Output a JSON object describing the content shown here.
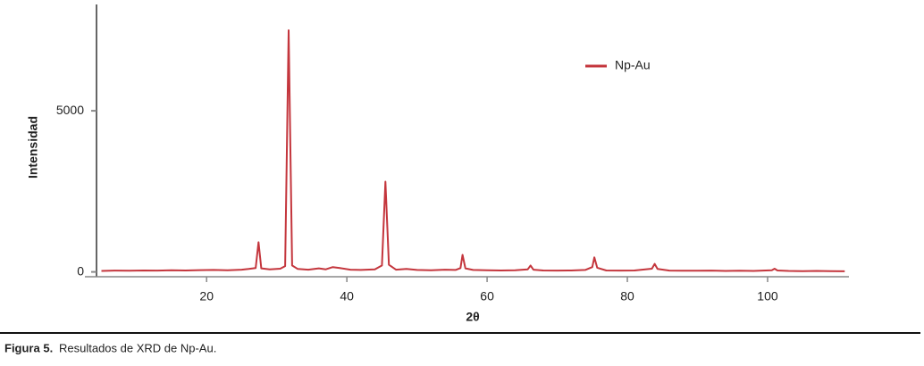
{
  "chart_data": {
    "type": "line",
    "xlabel": "2θ",
    "ylabel": "Intensidad",
    "xlim": [
      4.3,
      111.6
    ],
    "ylim": [
      -150,
      8300
    ],
    "xticks": [
      20,
      40,
      60,
      80,
      100
    ],
    "yticks": [
      0,
      5000
    ],
    "legend": "upper right",
    "x": [
      5,
      7,
      9,
      11,
      13,
      15,
      17,
      19,
      21,
      23,
      25,
      26,
      27,
      27.4,
      27.8,
      29,
      30.5,
      31.2,
      31.7,
      32.2,
      33,
      34.5,
      36,
      37,
      38,
      39,
      40.5,
      42,
      44,
      45,
      45.5,
      46,
      47,
      48.5,
      50,
      52,
      54,
      55.5,
      56.2,
      56.5,
      56.9,
      58,
      60,
      62,
      64,
      65.8,
      66.2,
      66.6,
      68,
      70,
      72,
      74,
      75,
      75.3,
      75.7,
      77,
      79,
      81,
      83.5,
      83.9,
      84.3,
      86,
      88,
      90,
      92,
      94,
      96,
      98,
      100.6,
      101,
      101.4,
      103,
      105,
      107,
      109,
      111
    ],
    "series": [
      {
        "name": "Np-Au",
        "color": "#c4363d",
        "values": [
          30,
          40,
          35,
          45,
          40,
          50,
          45,
          55,
          60,
          50,
          70,
          90,
          120,
          920,
          110,
          80,
          100,
          180,
          7500,
          200,
          90,
          70,
          110,
          80,
          150,
          120,
          70,
          60,
          80,
          200,
          2800,
          220,
          70,
          90,
          60,
          50,
          70,
          60,
          120,
          530,
          110,
          60,
          50,
          45,
          50,
          80,
          200,
          70,
          45,
          40,
          45,
          60,
          150,
          450,
          130,
          45,
          40,
          45,
          100,
          250,
          90,
          40,
          35,
          35,
          40,
          30,
          35,
          30,
          50,
          100,
          45,
          30,
          25,
          30,
          25,
          20
        ]
      }
    ],
    "caption_label": "Figura 5.",
    "caption": "Resultados de XRD de Np-Au."
  }
}
